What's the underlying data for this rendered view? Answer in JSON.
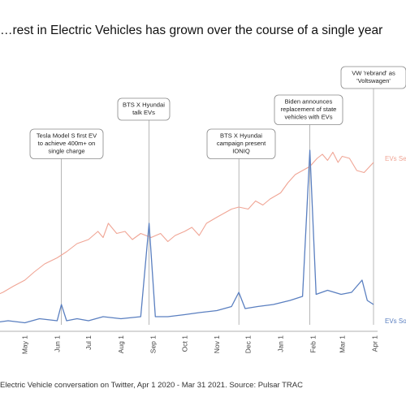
{
  "title": "…rest in Electric Vehicles has grown over the course of a single year",
  "source": "Electric Vehicle conversation on Twitter, Apr 1 2020 - Mar 31 2021. Source: Pulsar TRAC",
  "colors": {
    "search": "#f0a595",
    "social": "#5a7fc0",
    "axis": "#999999",
    "box": "#888888"
  },
  "chart_data": {
    "type": "line",
    "x_range": [
      "2020-04-01",
      "2021-03-31"
    ],
    "x_ticks": [
      "May 1",
      "Jun 1",
      "Jul 1",
      "Aug 1",
      "Sep 1",
      "Oct 1",
      "Nov 1",
      "Dec 1",
      "Jan 1",
      "Feb 1",
      "Mar 1",
      "Apr 1"
    ],
    "series": [
      {
        "name": "EVs Sea…",
        "color": "#f0a595",
        "points": [
          [
            "2020-04-01",
            16
          ],
          [
            "2020-04-10",
            18
          ],
          [
            "2020-04-20",
            21
          ],
          [
            "2020-05-01",
            24
          ],
          [
            "2020-05-10",
            28
          ],
          [
            "2020-05-20",
            32
          ],
          [
            "2020-06-01",
            35
          ],
          [
            "2020-06-10",
            38
          ],
          [
            "2020-06-20",
            42
          ],
          [
            "2020-07-01",
            44
          ],
          [
            "2020-07-10",
            48
          ],
          [
            "2020-07-15",
            45
          ],
          [
            "2020-07-20",
            52
          ],
          [
            "2020-07-28",
            47
          ],
          [
            "2020-08-05",
            48
          ],
          [
            "2020-08-12",
            44
          ],
          [
            "2020-08-20",
            47
          ],
          [
            "2020-08-30",
            45
          ],
          [
            "2020-09-08",
            47
          ],
          [
            "2020-09-15",
            43
          ],
          [
            "2020-09-22",
            46
          ],
          [
            "2020-10-01",
            48
          ],
          [
            "2020-10-08",
            50
          ],
          [
            "2020-10-15",
            46
          ],
          [
            "2020-10-22",
            52
          ],
          [
            "2020-11-01",
            55
          ],
          [
            "2020-11-08",
            57
          ],
          [
            "2020-11-15",
            59
          ],
          [
            "2020-11-22",
            60
          ],
          [
            "2020-12-01",
            59
          ],
          [
            "2020-12-08",
            63
          ],
          [
            "2020-12-15",
            61
          ],
          [
            "2020-12-22",
            64
          ],
          [
            "2021-01-01",
            67
          ],
          [
            "2021-01-08",
            72
          ],
          [
            "2021-01-15",
            76
          ],
          [
            "2021-01-22",
            78
          ],
          [
            "2021-01-29",
            80
          ],
          [
            "2021-02-05",
            84
          ],
          [
            "2021-02-10",
            86
          ],
          [
            "2021-02-15",
            83
          ],
          [
            "2021-02-20",
            87
          ],
          [
            "2021-02-25",
            82
          ],
          [
            "2021-03-01",
            85
          ],
          [
            "2021-03-08",
            84
          ],
          [
            "2021-03-15",
            78
          ],
          [
            "2021-03-22",
            77
          ],
          [
            "2021-03-31",
            82
          ]
        ]
      },
      {
        "name": "EVs Soc…",
        "color": "#5a7fc0",
        "points": [
          [
            "2020-04-01",
            3
          ],
          [
            "2020-04-15",
            4
          ],
          [
            "2020-05-01",
            3
          ],
          [
            "2020-05-15",
            5
          ],
          [
            "2020-06-01",
            4
          ],
          [
            "2020-06-05",
            12
          ],
          [
            "2020-06-10",
            4
          ],
          [
            "2020-06-20",
            5
          ],
          [
            "2020-07-01",
            4
          ],
          [
            "2020-07-15",
            6
          ],
          [
            "2020-08-01",
            5
          ],
          [
            "2020-08-20",
            6
          ],
          [
            "2020-08-28",
            52
          ],
          [
            "2020-09-03",
            6
          ],
          [
            "2020-09-15",
            6
          ],
          [
            "2020-10-01",
            7
          ],
          [
            "2020-10-15",
            8
          ],
          [
            "2020-11-01",
            9
          ],
          [
            "2020-11-15",
            11
          ],
          [
            "2020-11-22",
            18
          ],
          [
            "2020-11-28",
            10
          ],
          [
            "2020-12-10",
            11
          ],
          [
            "2020-12-25",
            12
          ],
          [
            "2021-01-10",
            14
          ],
          [
            "2021-01-22",
            16
          ],
          [
            "2021-01-29",
            88
          ],
          [
            "2021-02-04",
            17
          ],
          [
            "2021-02-15",
            19
          ],
          [
            "2021-02-28",
            17
          ],
          [
            "2021-03-10",
            18
          ],
          [
            "2021-03-20",
            24
          ],
          [
            "2021-03-25",
            14
          ],
          [
            "2021-03-31",
            12
          ]
        ]
      }
    ],
    "annotations": [
      {
        "date": "2020-06-05",
        "lines": [
          "Tesla Model S first EV",
          "to achieve 400m+ on",
          "single charge"
        ]
      },
      {
        "date": "2020-08-28",
        "lines": [
          "BTS X Hyundai",
          "talk EVs"
        ]
      },
      {
        "date": "2020-11-22",
        "lines": [
          "BTS X Hyundai",
          "campaign present",
          "IONIQ"
        ]
      },
      {
        "date": "2021-01-29",
        "lines": [
          "Biden announces",
          "replacement of state",
          "vehicles with EVs"
        ]
      },
      {
        "date": "2021-03-31",
        "lines": [
          "VW 'rebrand' as",
          "'Voltswagen'"
        ]
      }
    ]
  }
}
